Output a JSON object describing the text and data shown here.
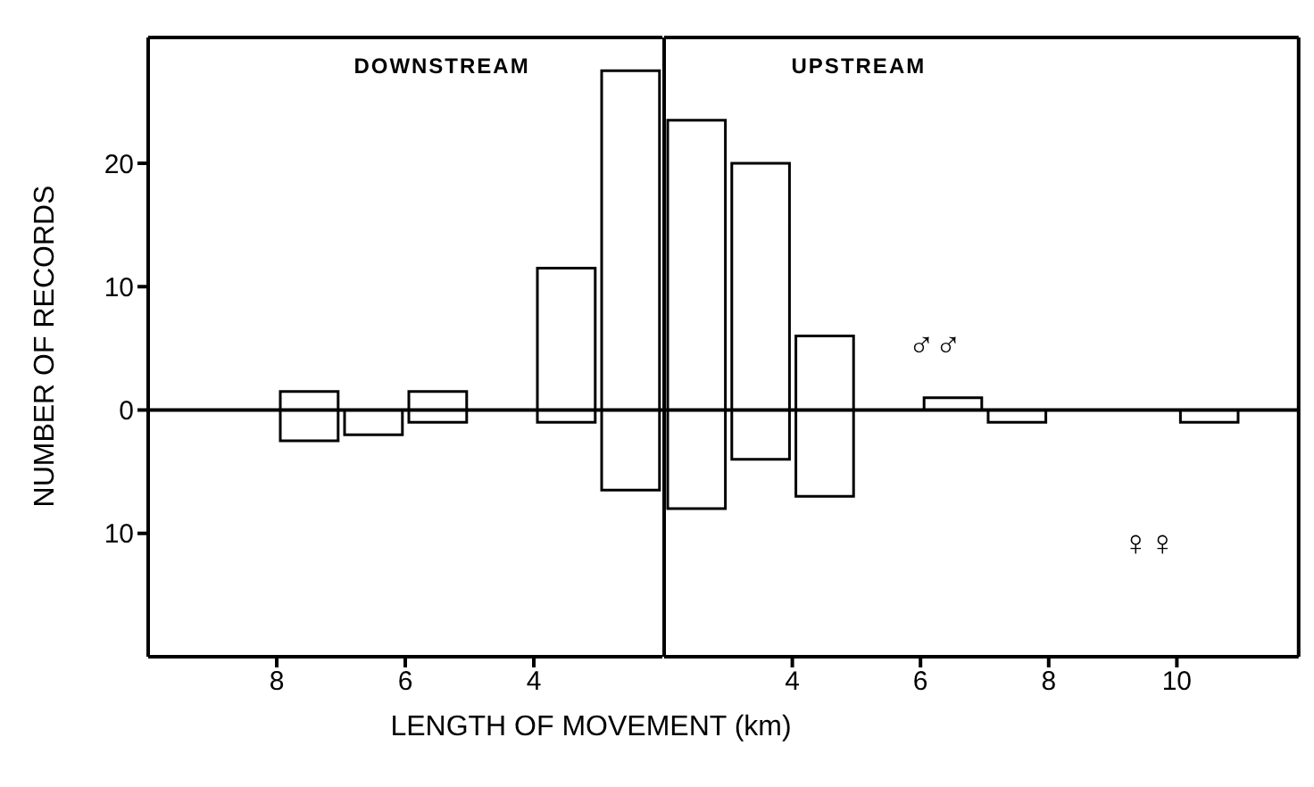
{
  "chart_data": [
    {
      "type": "bar",
      "xlabel": "LENGTH OF MOVEMENT (km)",
      "ylabel": "NUMBER OF RECORDS",
      "annotations": [
        "DOWNSTREAM"
      ],
      "x": [
        7.5,
        6.5,
        5.5,
        4.5,
        3.5,
        2.5
      ],
      "series": [
        {
          "color": "#000000",
          "values": [
            1.5,
            0,
            1.5,
            0,
            11.5,
            27.5
          ]
        },
        {
          "color": "#000000",
          "values": [
            -2.5,
            -2,
            -1,
            0,
            -1,
            -6.5
          ]
        }
      ],
      "xlim": [
        10,
        2
      ],
      "xticks": [
        8,
        6,
        4
      ],
      "ylim": [
        -20,
        30.2
      ],
      "yticks": [
        {
          "value": -10,
          "label": "10"
        },
        0,
        10,
        20
      ],
      "stacked": true,
      "ref_lines": [
        {
          "axis": "y",
          "value": 0,
          "color": "#000000"
        }
      ],
      "grid": false,
      "legend": false
    },
    {
      "type": "bar",
      "annotations": [
        "UPSTREAM"
      ],
      "x": [
        2.5,
        3.5,
        4.5,
        5.5,
        6.5,
        7.5,
        8.5,
        9.5,
        10.5
      ],
      "series": [
        {
          "name": "♂♂",
          "color": "#000000",
          "values": [
            23.5,
            20,
            6,
            0,
            1,
            0,
            0,
            0,
            0
          ]
        },
        {
          "name": "♀♀",
          "color": "#000000",
          "values": [
            -8,
            -4,
            -7,
            0,
            0,
            -1,
            0,
            0,
            -1
          ]
        }
      ],
      "xlim": [
        2,
        11.9
      ],
      "xticks": [
        4,
        6,
        8,
        10
      ],
      "ylim": [
        -20,
        30.2
      ],
      "stacked": true,
      "ref_lines": [
        {
          "axis": "y",
          "value": 0,
          "color": "#000000"
        }
      ],
      "tick_labels": "x",
      "grid": false,
      "legend": false
    }
  ]
}
